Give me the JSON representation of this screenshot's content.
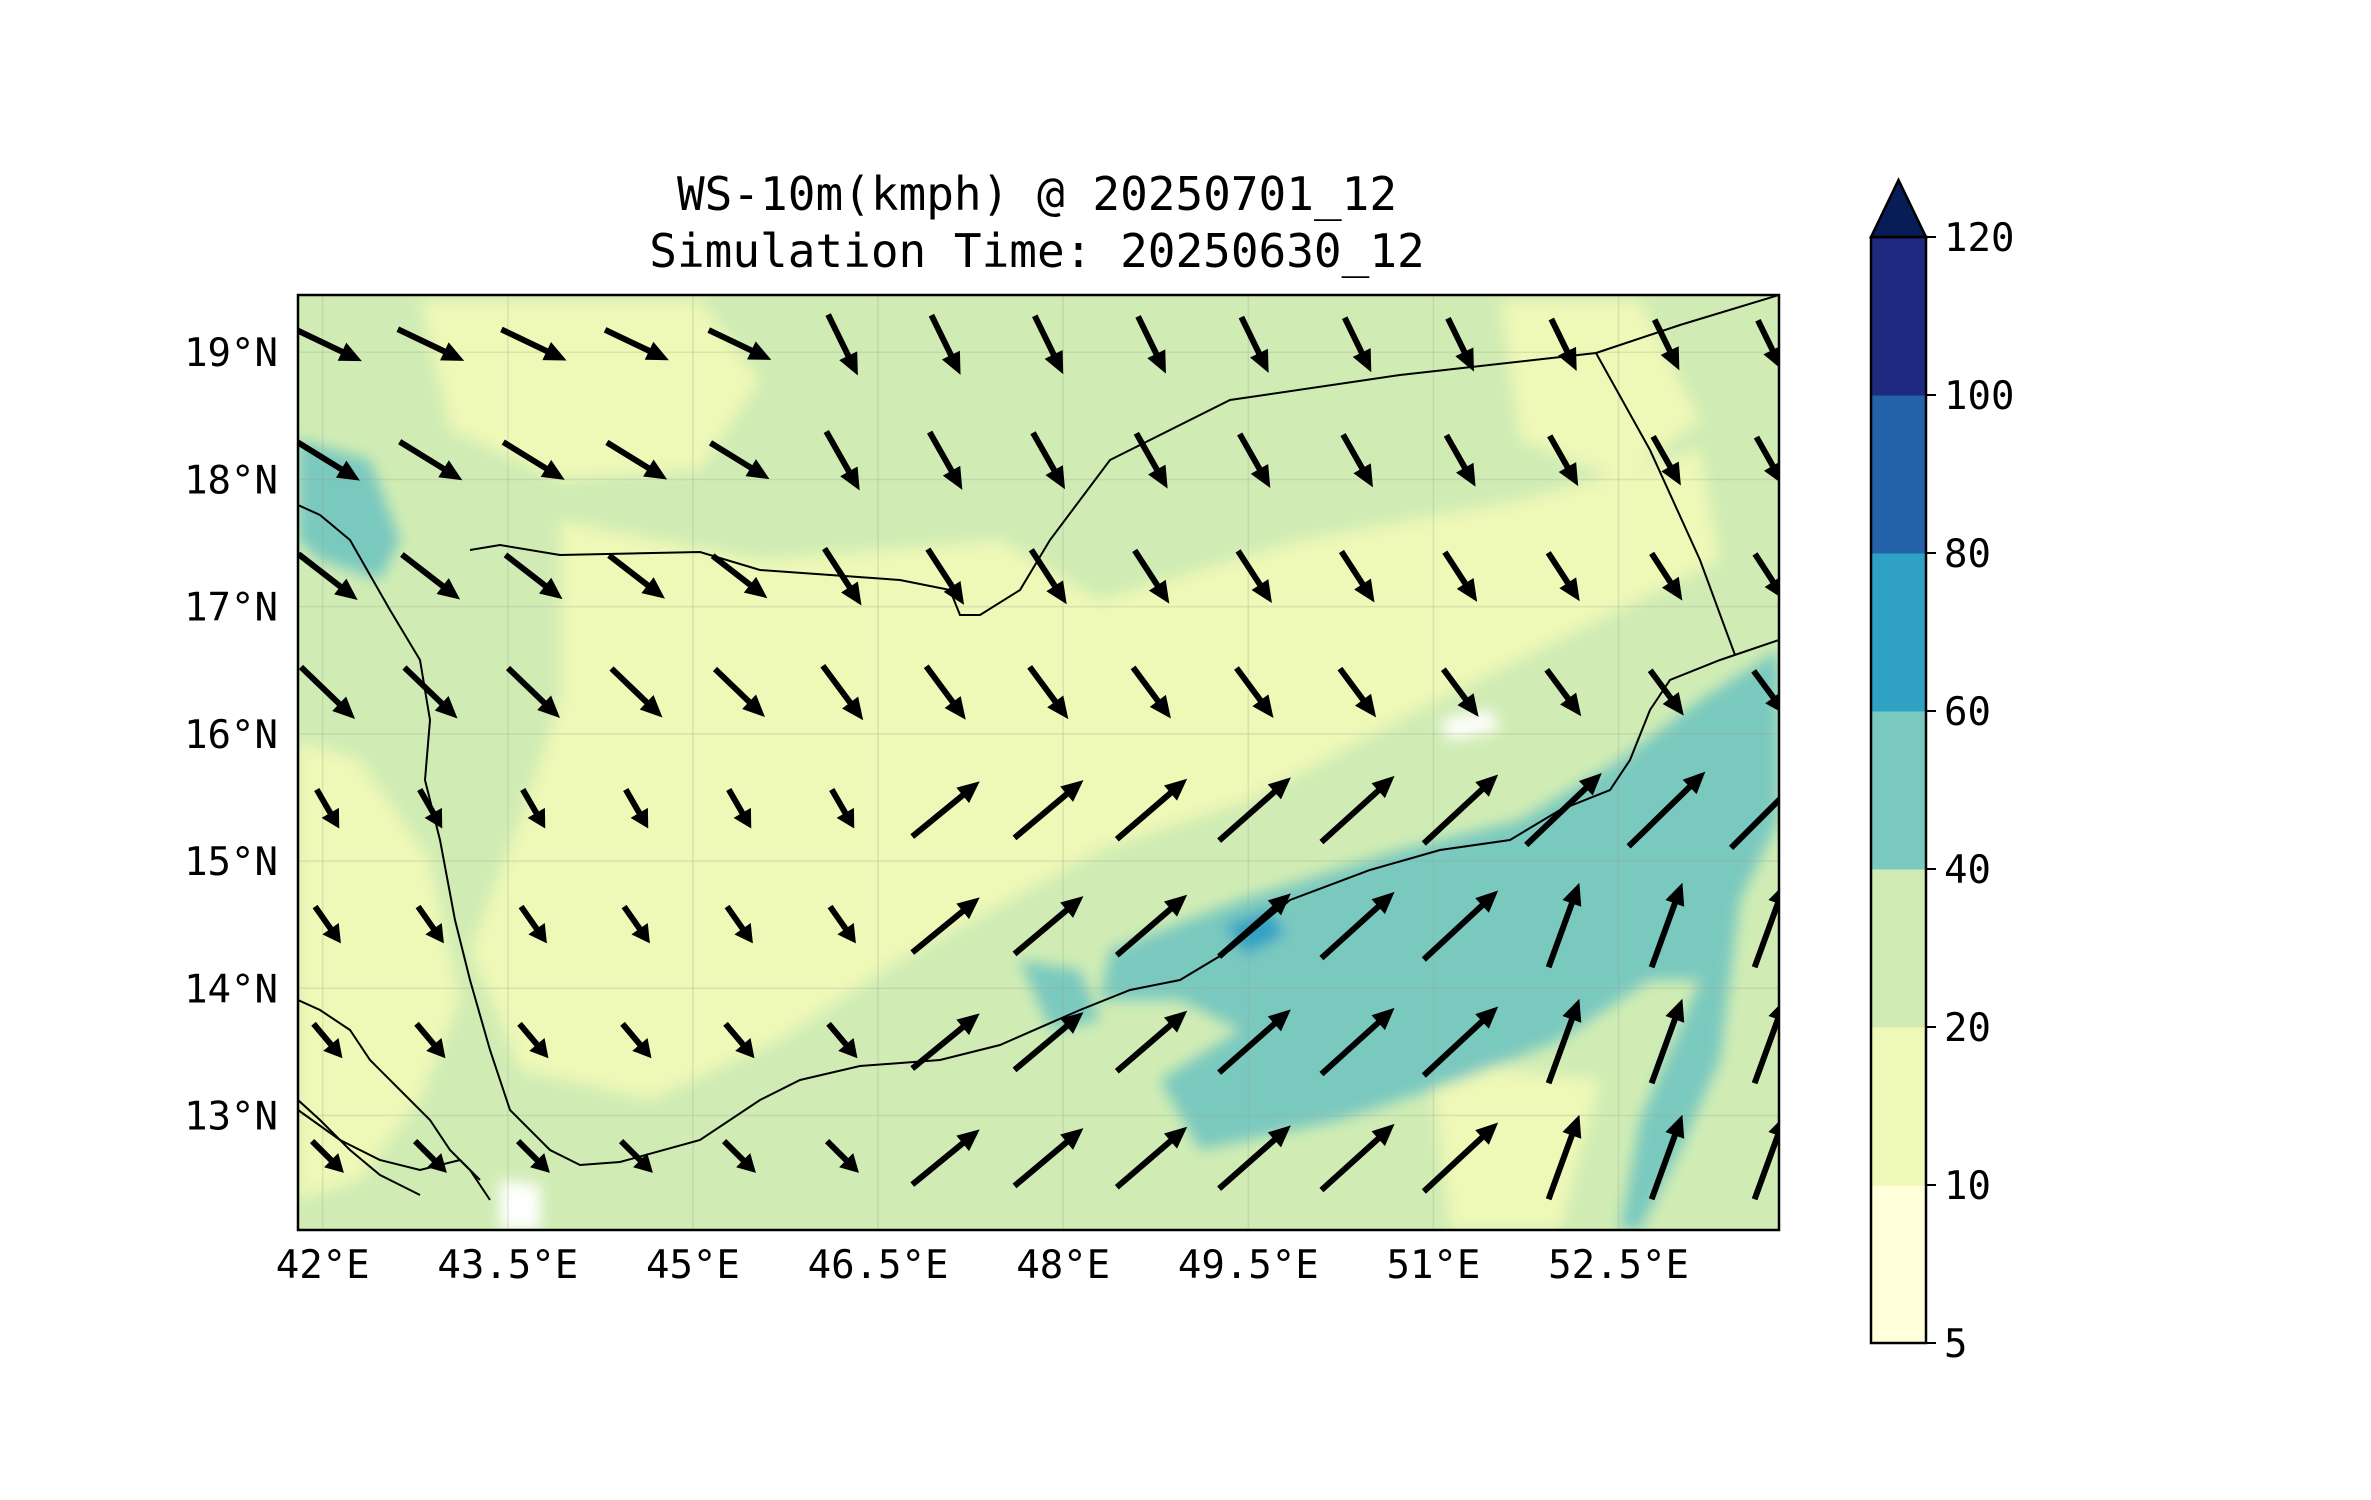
{
  "title": {
    "line1": "WS-10m(kmph) @ 20250701_12",
    "line2": "Simulation Time: 20250630_12"
  },
  "map": {
    "lon_range": [
      41.8,
      53.8
    ],
    "lat_range": [
      12.1,
      19.45
    ],
    "x_ticks": [
      {
        "value": 42.0,
        "label": "42°E"
      },
      {
        "value": 43.5,
        "label": "43.5°E"
      },
      {
        "value": 45.0,
        "label": "45°E"
      },
      {
        "value": 46.5,
        "label": "46.5°E"
      },
      {
        "value": 48.0,
        "label": "48°E"
      },
      {
        "value": 49.5,
        "label": "49.5°E"
      },
      {
        "value": 51.0,
        "label": "51°E"
      },
      {
        "value": 52.5,
        "label": "52.5°E"
      }
    ],
    "y_ticks": [
      {
        "value": 19,
        "label": "19°N"
      },
      {
        "value": 18,
        "label": "18°N"
      },
      {
        "value": 17,
        "label": "17°N"
      },
      {
        "value": 16,
        "label": "16°N"
      },
      {
        "value": 15,
        "label": "15°N"
      },
      {
        "value": 14,
        "label": "14°N"
      },
      {
        "value": 13,
        "label": "13°N"
      }
    ],
    "gridlines": true
  },
  "colorbar": {
    "levels": [
      {
        "label": "5",
        "value": 5,
        "color": "#ffffd9"
      },
      {
        "label": "10",
        "value": 10,
        "color": "#eef8b7"
      },
      {
        "label": "20",
        "value": 20,
        "color": "#d0ecb4"
      },
      {
        "label": "40",
        "value": 40,
        "color": "#7ac9bf"
      },
      {
        "label": "60",
        "value": 60,
        "color": "#2ea1c5"
      },
      {
        "label": "80",
        "value": 80,
        "color": "#2361a9"
      },
      {
        "label": "100",
        "value": 100,
        "color": "#1e2a80"
      },
      {
        "label": "120",
        "value": 120,
        "color": "#081d58"
      }
    ],
    "extend": "max"
  }
}
